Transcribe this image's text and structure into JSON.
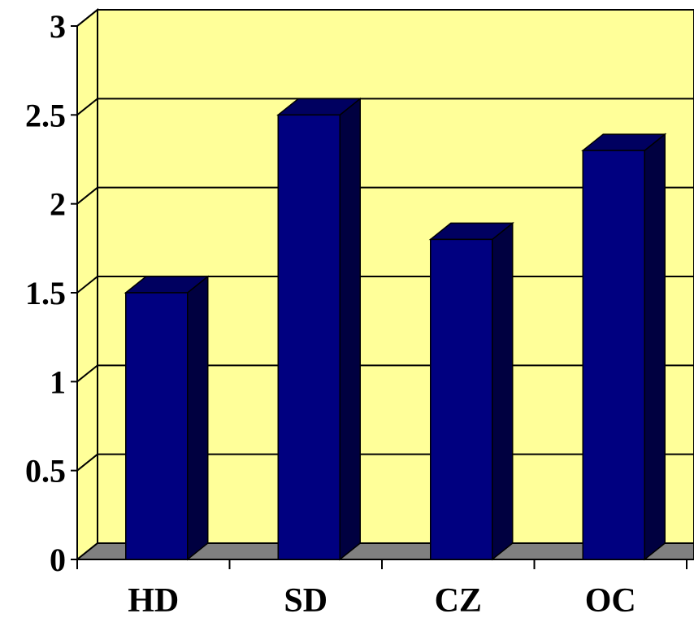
{
  "chart_data": {
    "type": "bar",
    "categories": [
      "HD",
      "SD",
      "CZ",
      "OC"
    ],
    "values": [
      1.5,
      2.5,
      1.8,
      2.3
    ],
    "title": "",
    "xlabel": "",
    "ylabel": "",
    "ylim": [
      0,
      3
    ],
    "yticks": [
      "0",
      "0.5",
      "1",
      "1.5",
      "2",
      "2.5",
      "3"
    ],
    "grid": true,
    "legend": "none",
    "colors": {
      "plot_wall": "#ffff99",
      "floor": "#808080",
      "bar_front": "#000080",
      "bar_side": "#000040",
      "bar_top": "#000060",
      "gridline": "#000000"
    }
  }
}
